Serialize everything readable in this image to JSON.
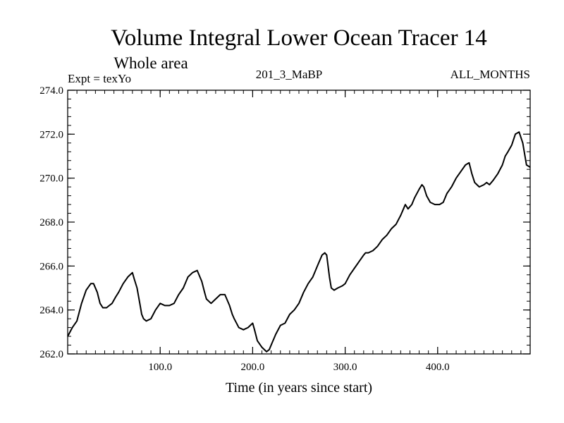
{
  "chart_data": {
    "type": "line",
    "title": "Volume Integral Lower Ocean Tracer 14",
    "subtitle": "Whole area",
    "annotations": {
      "left": "Expt = texYo",
      "center": "201_3_MaBP",
      "right": "ALL_MONTHS"
    },
    "xlabel": "Time (in years since start)",
    "ylabel": "",
    "xlim": [
      0,
      500
    ],
    "ylim": [
      262.0,
      274.0
    ],
    "x_ticks": [
      100,
      200,
      300,
      400
    ],
    "x_tick_labels": [
      "100.0",
      "200.0",
      "300.0",
      "400.0"
    ],
    "y_ticks": [
      262,
      264,
      266,
      268,
      270,
      272,
      274
    ],
    "y_tick_labels": [
      "262.0",
      "264.0",
      "266.0",
      "268.0",
      "270.0",
      "272.0",
      "274.0"
    ],
    "grid": false,
    "series": [
      {
        "x": [
          0,
          5,
          10,
          15,
          20,
          25,
          28,
          32,
          35,
          38,
          42,
          45,
          48,
          52,
          55,
          60,
          65,
          70,
          72,
          75,
          78,
          80,
          82,
          85,
          90,
          95,
          100,
          105,
          110,
          115,
          120,
          125,
          130,
          135,
          140,
          145,
          148,
          150,
          155,
          160,
          165,
          170,
          175,
          178,
          180,
          185,
          190,
          195,
          200,
          202,
          205,
          210,
          215,
          218,
          220,
          225,
          230,
          235,
          240,
          245,
          250,
          255,
          260,
          265,
          270,
          275,
          278,
          280,
          283,
          285,
          288,
          292,
          297,
          300,
          305,
          310,
          315,
          320,
          322,
          325,
          330,
          335,
          340,
          345,
          350,
          355,
          360,
          363,
          365,
          368,
          372,
          375,
          380,
          383,
          385,
          388,
          392,
          397,
          402,
          406,
          410,
          415,
          420,
          425,
          430,
          434,
          437,
          440,
          445,
          450,
          453,
          456,
          460,
          465,
          470,
          473,
          476,
          480,
          484,
          488,
          492,
          496,
          500
        ],
        "y": [
          262.8,
          263.2,
          263.5,
          264.3,
          264.9,
          265.2,
          265.2,
          264.8,
          264.3,
          264.1,
          264.1,
          264.2,
          264.3,
          264.6,
          264.8,
          265.2,
          265.5,
          265.7,
          265.4,
          265.0,
          264.3,
          263.8,
          263.6,
          263.5,
          263.6,
          264.0,
          264.3,
          264.2,
          264.2,
          264.3,
          264.7,
          265.0,
          265.5,
          265.7,
          265.8,
          265.3,
          264.8,
          264.5,
          264.3,
          264.5,
          264.7,
          264.7,
          264.2,
          263.8,
          263.6,
          263.2,
          263.1,
          263.2,
          263.4,
          263.1,
          262.6,
          262.3,
          262.1,
          262.2,
          262.4,
          262.9,
          263.3,
          263.4,
          263.8,
          264.0,
          264.3,
          264.8,
          265.2,
          265.5,
          266.0,
          266.5,
          266.6,
          266.5,
          265.5,
          265.0,
          264.9,
          265.0,
          265.1,
          265.2,
          265.6,
          265.9,
          266.2,
          266.5,
          266.6,
          266.6,
          266.7,
          266.9,
          267.2,
          267.4,
          267.7,
          267.9,
          268.3,
          268.6,
          268.8,
          268.6,
          268.8,
          269.1,
          269.5,
          269.7,
          269.6,
          269.2,
          268.9,
          268.8,
          268.8,
          268.9,
          269.3,
          269.6,
          270.0,
          270.3,
          270.6,
          270.7,
          270.2,
          269.8,
          269.6,
          269.7,
          269.8,
          269.7,
          269.9,
          270.2,
          270.6,
          271.0,
          271.2,
          271.5,
          272.0,
          272.1,
          271.6,
          270.6,
          270.5
        ]
      }
    ]
  }
}
